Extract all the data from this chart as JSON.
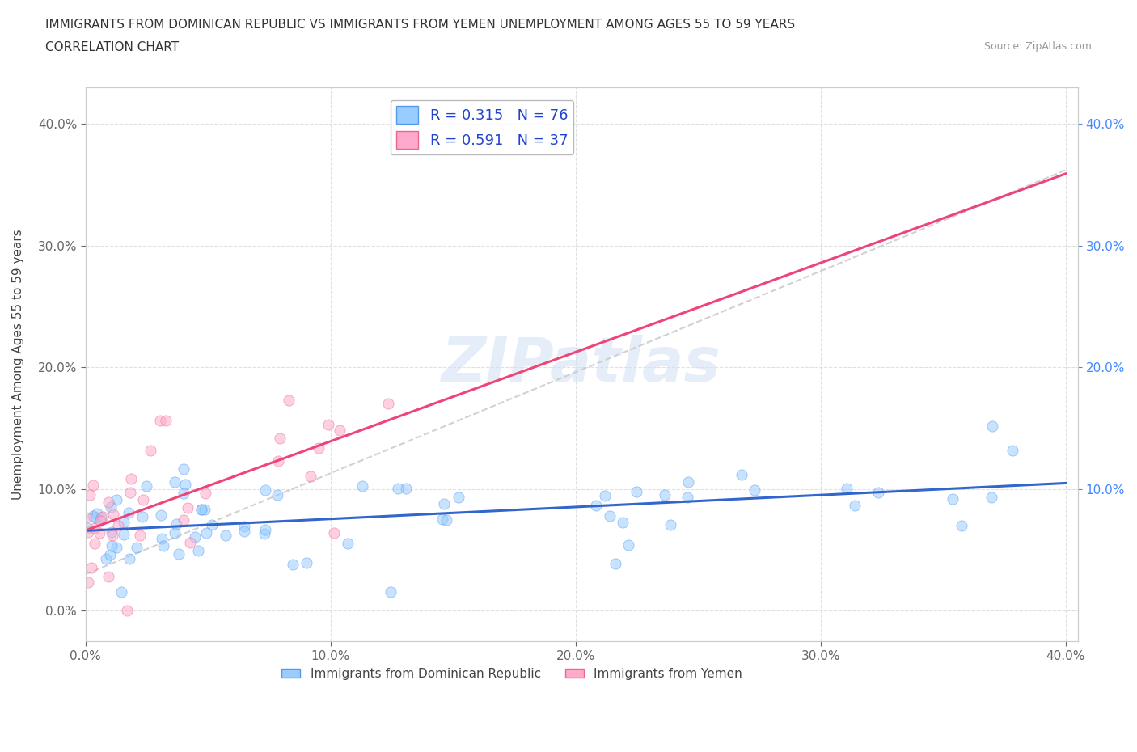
{
  "title_line1": "IMMIGRANTS FROM DOMINICAN REPUBLIC VS IMMIGRANTS FROM YEMEN UNEMPLOYMENT AMONG AGES 55 TO 59 YEARS",
  "title_line2": "CORRELATION CHART",
  "source_text": "Source: ZipAtlas.com",
  "ylabel": "Unemployment Among Ages 55 to 59 years",
  "xlim": [
    0.0,
    0.405
  ],
  "ylim": [
    -0.025,
    0.43
  ],
  "xtick_vals": [
    0.0,
    0.1,
    0.2,
    0.3,
    0.4
  ],
  "xtick_labels": [
    "0.0%",
    "10.0%",
    "20.0%",
    "30.0%",
    "40.0%"
  ],
  "ytick_vals": [
    0.0,
    0.1,
    0.2,
    0.3,
    0.4
  ],
  "ytick_labels": [
    "0.0%",
    "10.0%",
    "20.0%",
    "30.0%",
    "40.0%"
  ],
  "right_ytick_vals": [
    0.1,
    0.2,
    0.3,
    0.4
  ],
  "right_ytick_labels": [
    "10.0%",
    "20.0%",
    "30.0%",
    "40.0%"
  ],
  "color_dr": "#99ccff",
  "color_yemen": "#ffaacc",
  "edge_dr": "#5599ee",
  "edge_yemen": "#ee6688",
  "trendline_dr_color": "#3366cc",
  "trendline_yemen_color": "#ee4477",
  "trendline_top_color": "#cccccc",
  "R_dr": 0.315,
  "N_dr": 76,
  "R_yemen": 0.591,
  "N_yemen": 37,
  "legend_label_dr": "Immigrants from Dominican Republic",
  "legend_label_yemen": "Immigrants from Yemen",
  "watermark": "ZIPatlas",
  "background_color": "#ffffff",
  "grid_color": "#dddddd",
  "right_tick_color": "#4488ff"
}
